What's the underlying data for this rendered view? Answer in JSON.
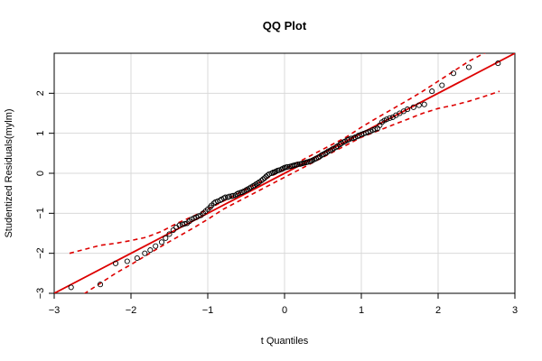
{
  "chart_data": {
    "type": "scatter",
    "title": "QQ Plot",
    "xlabel": "t Quantiles",
    "ylabel": "Studentized Residuals(mylm)",
    "xlim": [
      -3,
      3
    ],
    "ylim": [
      -3,
      3
    ],
    "x_ticks": [
      -3,
      -2,
      -1,
      0,
      1,
      2,
      3
    ],
    "y_ticks": [
      -3,
      -2,
      -1,
      0,
      1,
      2
    ],
    "x_tick_labels": [
      "−3",
      "−2",
      "−1",
      "0",
      "1",
      "2",
      "3"
    ],
    "y_tick_labels": [
      "−3",
      "−2",
      "−1",
      "0",
      "1",
      "2"
    ],
    "grid": true,
    "colors": {
      "points": "#000000",
      "reference_line": "#dd0000",
      "envelope": "#dd0000",
      "grid": "#d9d9d9"
    },
    "points": {
      "x": [
        -2.78,
        -2.4,
        -2.2,
        -2.05,
        -1.92,
        -1.82,
        -1.75,
        -1.68,
        -1.6,
        -1.55,
        -1.5,
        -1.45,
        -1.41,
        -1.37,
        -1.33,
        -1.3,
        -1.27,
        -1.24,
        -1.21,
        -1.18,
        -1.15,
        -1.12,
        -1.09,
        -1.06,
        -1.03,
        -1.0,
        -0.97,
        -0.95,
        -0.92,
        -0.9,
        -0.87,
        -0.84,
        -0.82,
        -0.79,
        -0.77,
        -0.74,
        -0.72,
        -0.69,
        -0.67,
        -0.64,
        -0.62,
        -0.6,
        -0.57,
        -0.55,
        -0.53,
        -0.5,
        -0.48,
        -0.46,
        -0.44,
        -0.41,
        -0.39,
        -0.37,
        -0.35,
        -0.33,
        -0.3,
        -0.28,
        -0.26,
        -0.24,
        -0.22,
        -0.2,
        -0.17,
        -0.15,
        -0.13,
        -0.11,
        -0.09,
        -0.07,
        -0.04,
        -0.02,
        0.0,
        0.02,
        0.04,
        0.07,
        0.09,
        0.11,
        0.13,
        0.15,
        0.17,
        0.2,
        0.22,
        0.24,
        0.26,
        0.28,
        0.3,
        0.33,
        0.35,
        0.37,
        0.39,
        0.41,
        0.44,
        0.46,
        0.48,
        0.5,
        0.53,
        0.55,
        0.57,
        0.6,
        0.62,
        0.64,
        0.67,
        0.69,
        0.72,
        0.74,
        0.77,
        0.79,
        0.82,
        0.84,
        0.87,
        0.9,
        0.92,
        0.95,
        0.97,
        1.0,
        1.03,
        1.06,
        1.09,
        1.12,
        1.15,
        1.18,
        1.21,
        1.24,
        1.27,
        1.3,
        1.33,
        1.37,
        1.41,
        1.45,
        1.5,
        1.55,
        1.6,
        1.68,
        1.75,
        1.82,
        1.92,
        2.05,
        2.2,
        2.4,
        2.78
      ],
      "y": [
        -2.85,
        -2.78,
        -2.25,
        -2.2,
        -2.12,
        -2.0,
        -1.92,
        -1.82,
        -1.72,
        -1.62,
        -1.52,
        -1.42,
        -1.35,
        -1.3,
        -1.28,
        -1.26,
        -1.25,
        -1.2,
        -1.15,
        -1.12,
        -1.1,
        -1.07,
        -1.05,
        -1.0,
        -0.95,
        -0.9,
        -0.85,
        -0.8,
        -0.75,
        -0.72,
        -0.7,
        -0.68,
        -0.65,
        -0.62,
        -0.6,
        -0.6,
        -0.58,
        -0.57,
        -0.56,
        -0.55,
        -0.52,
        -0.5,
        -0.48,
        -0.47,
        -0.45,
        -0.42,
        -0.4,
        -0.38,
        -0.35,
        -0.32,
        -0.3,
        -0.27,
        -0.25,
        -0.22,
        -0.18,
        -0.15,
        -0.12,
        -0.08,
        -0.05,
        -0.02,
        0.0,
        0.02,
        0.03,
        0.05,
        0.07,
        0.08,
        0.1,
        0.12,
        0.14,
        0.15,
        0.16,
        0.17,
        0.18,
        0.19,
        0.2,
        0.21,
        0.22,
        0.23,
        0.24,
        0.25,
        0.26,
        0.27,
        0.28,
        0.3,
        0.31,
        0.33,
        0.35,
        0.37,
        0.4,
        0.42,
        0.45,
        0.47,
        0.5,
        0.52,
        0.55,
        0.57,
        0.6,
        0.62,
        0.65,
        0.68,
        0.72,
        0.75,
        0.78,
        0.8,
        0.83,
        0.85,
        0.87,
        0.88,
        0.9,
        0.92,
        0.95,
        0.97,
        0.99,
        1.01,
        1.03,
        1.05,
        1.08,
        1.1,
        1.12,
        1.2,
        1.28,
        1.32,
        1.35,
        1.38,
        1.4,
        1.45,
        1.5,
        1.55,
        1.6,
        1.65,
        1.7,
        1.72,
        2.05,
        2.2,
        2.5,
        2.65,
        2.75
      ]
    },
    "reference_line": {
      "intercept": 0.0,
      "slope": 1.0
    },
    "envelope": {
      "x": [
        -2.8,
        -2.6,
        -2.4,
        -2.2,
        -2.0,
        -1.8,
        -1.6,
        -1.4,
        -1.2,
        -1.0,
        -0.8,
        -0.6,
        -0.4,
        -0.2,
        0.0,
        0.2,
        0.4,
        0.6,
        0.8,
        1.0,
        1.2,
        1.4,
        1.6,
        1.8,
        2.0,
        2.2,
        2.4,
        2.6,
        2.8
      ],
      "upper": [
        -2.0,
        -1.9,
        -1.8,
        -1.75,
        -1.68,
        -1.6,
        -1.45,
        -1.25,
        -1.08,
        -0.9,
        -0.7,
        -0.5,
        -0.3,
        -0.1,
        0.1,
        0.3,
        0.5,
        0.7,
        0.9,
        1.15,
        1.38,
        1.6,
        1.82,
        2.05,
        2.3,
        2.55,
        2.8,
        3.0,
        3.2
      ],
      "lower": [
        -3.2,
        -3.0,
        -2.75,
        -2.5,
        -2.28,
        -2.05,
        -1.82,
        -1.6,
        -1.38,
        -1.15,
        -0.9,
        -0.7,
        -0.5,
        -0.3,
        -0.1,
        0.1,
        0.3,
        0.5,
        0.7,
        0.9,
        1.05,
        1.2,
        1.35,
        1.5,
        1.62,
        1.7,
        1.8,
        1.92,
        2.05
      ]
    }
  }
}
